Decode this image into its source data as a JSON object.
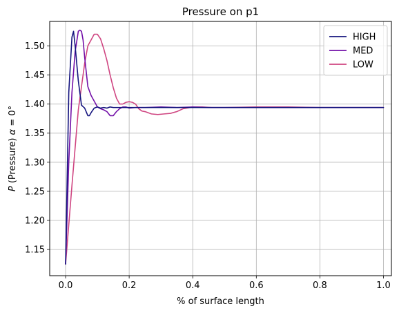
{
  "chart_data": {
    "type": "line",
    "title": "Pressure on p1",
    "xlabel": "% of surface length",
    "ylabel_parts": [
      "P",
      " (Pressure) ",
      "α",
      " = 0°"
    ],
    "xlim": [
      -0.05,
      1.025
    ],
    "ylim": [
      1.105,
      1.542
    ],
    "x_ticks": [
      0.0,
      0.2,
      0.4,
      0.6,
      0.8,
      1.0
    ],
    "x_tick_labels": [
      "0.0",
      "0.2",
      "0.4",
      "0.6",
      "0.8",
      "1.0"
    ],
    "y_ticks": [
      1.15,
      1.2,
      1.25,
      1.3,
      1.35,
      1.4,
      1.45,
      1.5
    ],
    "y_tick_labels": [
      "1.15",
      "1.20",
      "1.25",
      "1.30",
      "1.35",
      "1.40",
      "1.45",
      "1.50"
    ],
    "grid": true,
    "legend_position": "top-right",
    "series": [
      {
        "name": "HIGH",
        "color": "#14147e",
        "x": [
          0.0,
          0.01,
          0.02,
          0.025,
          0.03,
          0.04,
          0.05,
          0.06,
          0.07,
          0.075,
          0.08,
          0.09,
          0.1,
          0.11,
          0.12,
          0.13,
          0.14,
          0.15,
          0.17,
          0.2,
          0.25,
          0.3,
          0.4,
          0.5,
          0.6,
          0.7,
          0.8,
          0.9,
          1.0
        ],
        "y": [
          1.125,
          1.42,
          1.515,
          1.525,
          1.5,
          1.44,
          1.398,
          1.393,
          1.38,
          1.38,
          1.385,
          1.393,
          1.395,
          1.393,
          1.394,
          1.393,
          1.395,
          1.394,
          1.394,
          1.394,
          1.394,
          1.394,
          1.394,
          1.394,
          1.394,
          1.394,
          1.394,
          1.394,
          1.394
        ]
      },
      {
        "name": "MED",
        "color": "#7310a8",
        "x": [
          0.0,
          0.01,
          0.02,
          0.03,
          0.04,
          0.045,
          0.05,
          0.055,
          0.06,
          0.07,
          0.08,
          0.09,
          0.1,
          0.11,
          0.12,
          0.13,
          0.14,
          0.15,
          0.16,
          0.17,
          0.18,
          0.19,
          0.2,
          0.22,
          0.25,
          0.3,
          0.35,
          0.4,
          0.45,
          0.5,
          0.6,
          0.7,
          0.8,
          0.9,
          1.0
        ],
        "y": [
          1.125,
          1.3,
          1.42,
          1.49,
          1.525,
          1.527,
          1.525,
          1.51,
          1.48,
          1.43,
          1.415,
          1.405,
          1.395,
          1.392,
          1.39,
          1.387,
          1.38,
          1.38,
          1.387,
          1.392,
          1.395,
          1.395,
          1.393,
          1.394,
          1.394,
          1.395,
          1.394,
          1.395,
          1.394,
          1.394,
          1.394,
          1.394,
          1.394,
          1.394,
          1.394
        ]
      },
      {
        "name": "LOW",
        "color": "#cf4581",
        "x": [
          0.0,
          0.02,
          0.04,
          0.05,
          0.06,
          0.07,
          0.08,
          0.09,
          0.1,
          0.11,
          0.12,
          0.13,
          0.14,
          0.15,
          0.16,
          0.17,
          0.18,
          0.19,
          0.2,
          0.21,
          0.22,
          0.23,
          0.24,
          0.25,
          0.27,
          0.29,
          0.31,
          0.33,
          0.35,
          0.37,
          0.4,
          0.43,
          0.46,
          0.5,
          0.6,
          0.7,
          0.8,
          0.9,
          1.0
        ],
        "y": [
          1.125,
          1.26,
          1.39,
          1.43,
          1.47,
          1.5,
          1.51,
          1.52,
          1.52,
          1.512,
          1.495,
          1.475,
          1.45,
          1.428,
          1.41,
          1.4,
          1.4,
          1.403,
          1.404,
          1.403,
          1.4,
          1.392,
          1.388,
          1.387,
          1.383,
          1.382,
          1.383,
          1.384,
          1.387,
          1.392,
          1.395,
          1.395,
          1.394,
          1.394,
          1.395,
          1.395,
          1.394,
          1.394,
          1.394
        ]
      }
    ]
  }
}
